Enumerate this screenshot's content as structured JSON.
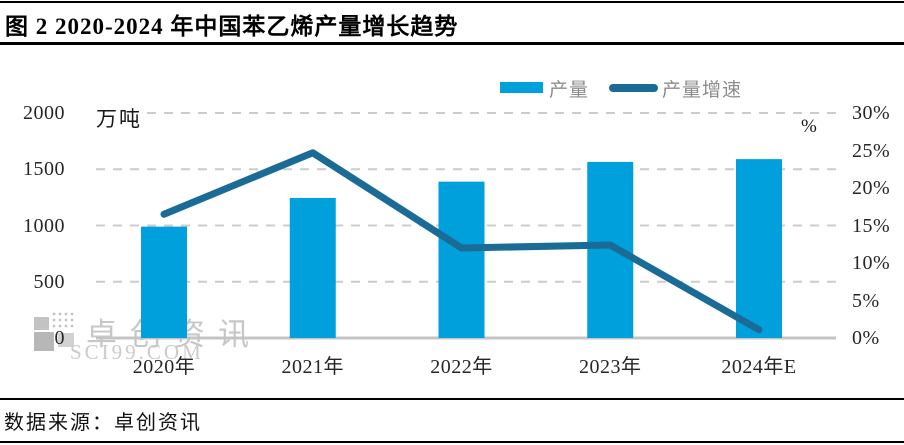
{
  "figure": {
    "title": "图 2 2020-2024 年中国苯乙烯产量增长趋势",
    "source": "数据来源：卓创资讯"
  },
  "watermark": {
    "name": "卓创资讯",
    "domain": "SCI99.COM"
  },
  "chart_data": {
    "type": "bar",
    "title": "2020-2024 年中国苯乙烯产量增长趋势",
    "categories": [
      "2020年",
      "2021年",
      "2022年",
      "2023年",
      "2024年E"
    ],
    "series": [
      {
        "name": "产量",
        "type": "bar",
        "axis": "left",
        "unit": "万吨",
        "color": "#00A0DC",
        "values": [
          990,
          1245,
          1390,
          1565,
          1590
        ]
      },
      {
        "name": "产量增速",
        "type": "line",
        "axis": "right",
        "unit": "%",
        "color": "#1A6C96",
        "values": [
          16.5,
          24.7,
          12.0,
          12.4,
          1.1
        ]
      }
    ],
    "left_axis": {
      "label": "万吨",
      "min": 0,
      "max": 2000,
      "ticks": [
        2000,
        1500,
        1000,
        500,
        0
      ]
    },
    "right_axis": {
      "label": "%",
      "min": 0,
      "max": 30,
      "ticks": [
        "30%",
        "25%",
        "20%",
        "15%",
        "10%",
        "5%",
        "0%"
      ]
    },
    "legend": [
      "产量",
      "产量增速"
    ],
    "legend_position": "top",
    "grid": "horizontal-dashed"
  }
}
